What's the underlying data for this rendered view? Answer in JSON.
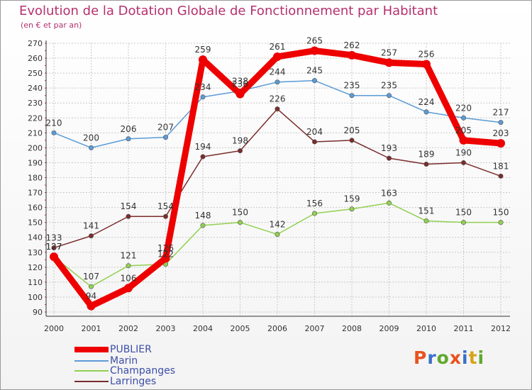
{
  "title": "Evolution de la Dotation Globale de Fonctionnement par Habitant",
  "subtitle": "(en € et par an)",
  "logo": {
    "text": "Proxiti",
    "colors": [
      "#e8531e",
      "#3a6fc9",
      "#5fa82c",
      "#e8531e",
      "#3a6fc9",
      "#d9a21a",
      "#5fa82c"
    ]
  },
  "chart_data": {
    "type": "line",
    "title": "Evolution de la Dotation Globale de Fonctionnement par Habitant",
    "subtitle": "(en € et par an)",
    "xlabel": "",
    "ylabel": "",
    "x": [
      "2000",
      "2001",
      "2002",
      "2003",
      "2004",
      "2005",
      "2006",
      "2007",
      "2008",
      "2009",
      "2010",
      "2011",
      "2012"
    ],
    "ylim": [
      90,
      270
    ],
    "ytick_step": 10,
    "yticks": [
      "90",
      "100",
      "110",
      "120",
      "130",
      "140",
      "150",
      "160",
      "170",
      "180",
      "190",
      "200",
      "210",
      "220",
      "230",
      "240",
      "250",
      "260",
      "270"
    ],
    "grid": true,
    "legend_position": "bottom-left",
    "series": [
      {
        "name": "PUBLIER",
        "color": "#ee0000",
        "bold": true,
        "values": [
          127,
          94,
          106,
          126,
          259,
          236,
          261,
          265,
          262,
          257,
          256,
          205,
          203
        ],
        "labels": [
          "127",
          "94",
          "106",
          "126",
          "259",
          "236",
          "261",
          "265",
          "262",
          "257",
          "256",
          "205",
          "203"
        ]
      },
      {
        "name": "Marin",
        "color": "#5b9bd5",
        "bold": false,
        "values": [
          210,
          200,
          206,
          207,
          234,
          238,
          244,
          245,
          235,
          235,
          224,
          220,
          217
        ],
        "labels": [
          "210",
          "200",
          "206",
          "207",
          "234",
          "238",
          "244",
          "245",
          "235",
          "235",
          "224",
          "220",
          "217"
        ]
      },
      {
        "name": "Champanges",
        "color": "#92d050",
        "bold": false,
        "values": [
          127,
          107,
          121,
          122,
          148,
          150,
          142,
          156,
          159,
          163,
          151,
          150,
          150
        ],
        "labels": [
          "127",
          "107",
          "121",
          "122",
          "148",
          "150",
          "142",
          "156",
          "159",
          "163",
          "151",
          "150",
          "150"
        ]
      },
      {
        "name": "Larringes",
        "color": "#7b2c2c",
        "bold": false,
        "values": [
          133,
          141,
          154,
          154,
          194,
          198,
          226,
          204,
          205,
          193,
          189,
          190,
          181
        ],
        "labels": [
          "133",
          "141",
          "154",
          "154",
          "194",
          "198",
          "226",
          "204",
          "205",
          "193",
          "189",
          "190",
          "181"
        ]
      }
    ]
  }
}
